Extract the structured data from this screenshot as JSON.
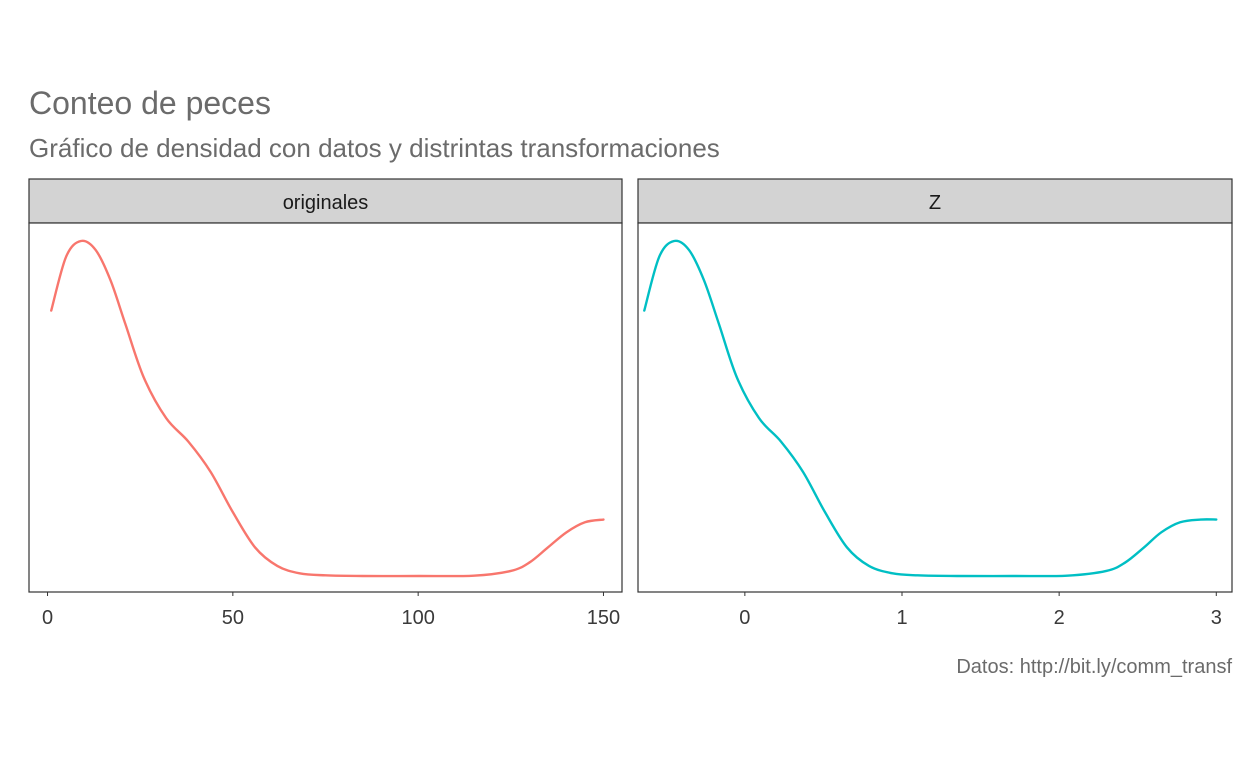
{
  "title": "Conteo de peces",
  "subtitle": "Gráfico de densidad con datos y distrintas transformaciones",
  "caption": "Datos: http://bit.ly/comm_transf",
  "colors": {
    "originales": "#F8766D",
    "Z": "#00BFC4",
    "strip_bg": "#d3d3d3",
    "panel_border": "#333333"
  },
  "chart_data": [
    {
      "type": "line",
      "facet": "originales",
      "color": "#F8766D",
      "xlim": [
        -5,
        155
      ],
      "ylim": [
        0,
        1
      ],
      "xticks": [
        0,
        50,
        100,
        150
      ],
      "xtick_labels": [
        "0",
        "50",
        "100",
        "150"
      ],
      "x": [
        1,
        5,
        9,
        13,
        17,
        21,
        26,
        32,
        38,
        44,
        50,
        56,
        62,
        68,
        75,
        85,
        100,
        115,
        125,
        130,
        135,
        140,
        145,
        150
      ],
      "y": [
        0.79,
        0.95,
        0.997,
        0.97,
        0.88,
        0.75,
        0.59,
        0.47,
        0.4,
        0.31,
        0.19,
        0.085,
        0.03,
        0.008,
        0.002,
        0.0,
        0.0,
        0.001,
        0.015,
        0.04,
        0.085,
        0.13,
        0.16,
        0.168
      ]
    },
    {
      "type": "line",
      "facet": "Z",
      "color": "#00BFC4",
      "xlim": [
        -0.68,
        3.1
      ],
      "ylim": [
        0,
        1
      ],
      "xticks": [
        0,
        1,
        2,
        3
      ],
      "xtick_labels": [
        "0",
        "1",
        "2",
        "3"
      ],
      "x": [
        -0.64,
        -0.545,
        -0.45,
        -0.355,
        -0.26,
        -0.165,
        -0.05,
        0.09,
        0.23,
        0.37,
        0.51,
        0.65,
        0.79,
        0.94,
        1.1,
        1.35,
        1.7,
        2.05,
        2.3,
        2.42,
        2.54,
        2.65,
        2.77,
        2.9,
        3.0
      ],
      "y": [
        0.79,
        0.95,
        0.997,
        0.97,
        0.88,
        0.75,
        0.59,
        0.47,
        0.4,
        0.31,
        0.19,
        0.085,
        0.03,
        0.008,
        0.002,
        0.0,
        0.0,
        0.001,
        0.015,
        0.04,
        0.085,
        0.13,
        0.16,
        0.168,
        0.168
      ]
    }
  ]
}
